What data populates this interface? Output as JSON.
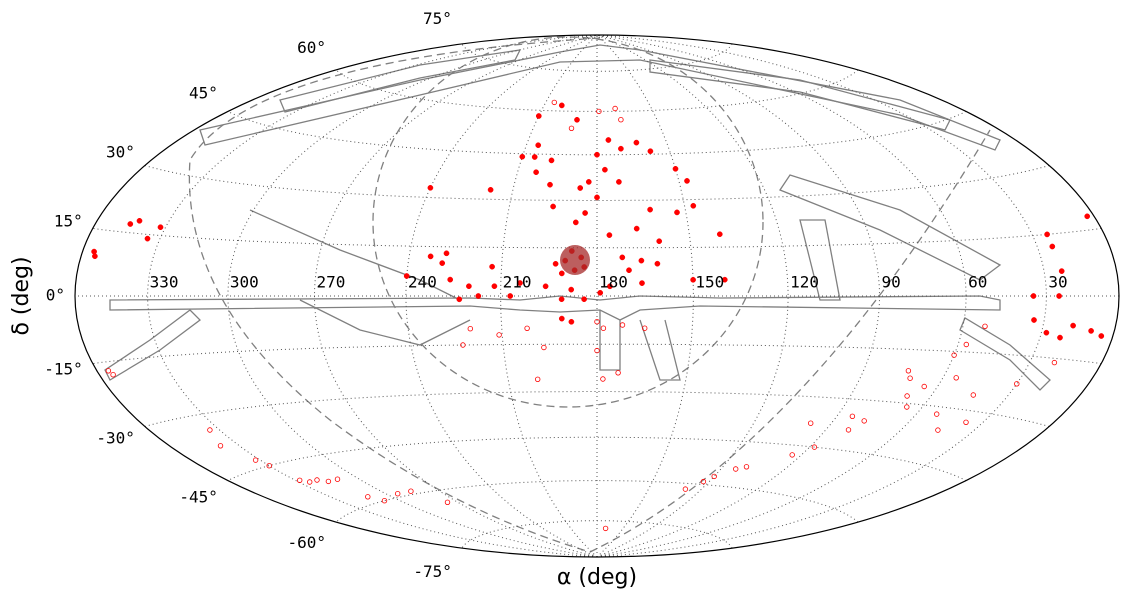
{
  "chart_data": {
    "type": "sky-scatter",
    "projection": "hammer",
    "x_label": "α (deg)",
    "y_label": "δ (deg)",
    "xlim": [
      0,
      360
    ],
    "ylim": [
      -90,
      90
    ],
    "xticks": [
      30,
      60,
      90,
      120,
      150,
      180,
      210,
      240,
      270,
      300,
      330
    ],
    "yticks": [
      {
        "value": -75,
        "label": "-75°"
      },
      {
        "value": -60,
        "label": "-60°"
      },
      {
        "value": -45,
        "label": "-45°"
      },
      {
        "value": -30,
        "label": "-30°"
      },
      {
        "value": -15,
        "label": "-15°"
      },
      {
        "value": 0,
        "label": "0°"
      },
      {
        "value": 15,
        "label": "15°"
      },
      {
        "value": 30,
        "label": "30°"
      },
      {
        "value": 45,
        "label": "45°"
      },
      {
        "value": 60,
        "label": "60°"
      },
      {
        "value": 75,
        "label": "75°"
      }
    ],
    "grid": true,
    "series": [
      {
        "color": "#ff0000",
        "marker": "filled",
        "x": [
          355,
          354,
          345,
          342,
          335,
          332,
          3,
          24,
          24,
          23,
          25,
          35,
          34,
          28,
          18,
          10,
          5,
          22,
          200,
          210,
          205,
          190,
          180,
          175,
          177,
          172,
          183,
          180,
          186,
          197,
          198,
          210,
          205,
          203,
          195,
          187,
          184,
          176,
          167,
          160,
          162,
          153,
          147,
          150,
          158,
          163,
          170,
          147,
          140,
          172,
          170,
          166,
          161,
          150,
          140,
          166,
          176,
          179,
          191,
          191,
          193,
          188,
          184,
          196,
          204,
          212,
          217,
          220,
          223,
          207,
          213,
          228,
          233,
          229,
          240,
          226,
          218,
          240,
          188,
          191,
          188,
          185,
          187,
          190,
          184
        ],
        "y": [
          10,
          9,
          17,
          18,
          14,
          17,
          18,
          15,
          12,
          6,
          0,
          0,
          -6,
          -9,
          -7,
          -8,
          -9,
          -10,
          62,
          58,
          48,
          57,
          45,
          50,
          40,
          36,
          36,
          31,
          34,
          35,
          43,
          44,
          44,
          39,
          28,
          23,
          26,
          19,
          21,
          17,
          27,
          26,
          28,
          40,
          46,
          49,
          47,
          36,
          19,
          12,
          8,
          11,
          10,
          5,
          5,
          4,
          3,
          1,
          7,
          -1,
          10,
          2,
          -1,
          3,
          4,
          3,
          0,
          3,
          -1,
          0,
          9,
          13,
          12,
          10,
          6,
          5,
          33,
          33,
          -8,
          -7,
          14,
          12,
          8,
          11,
          9
        ]
      },
      {
        "color": "#ff0000",
        "marker": "open",
        "x": [
          179,
          170,
          168,
          192,
          205,
          180,
          178,
          172,
          165,
          180,
          178,
          173,
          197,
          200,
          202,
          211,
          220,
          223,
          170,
          355,
          354,
          338,
          334,
          332,
          330,
          328,
          325,
          320,
          316,
          310,
          312,
          308,
          294,
          285,
          276,
          129,
          123,
          120,
          113,
          109,
          98,
          94,
          88,
          84,
          81,
          78,
          74,
          72,
          69,
          65,
          66,
          60,
          57,
          55,
          52,
          45,
          37,
          30,
          20,
          44,
          52
        ],
        "y": [
          60,
          61,
          57,
          54,
          63,
          -8,
          -10,
          -9,
          -10,
          -17,
          -26,
          -24,
          -16,
          -26,
          -10,
          -12,
          -10,
          -15,
          -78,
          -17,
          -18,
          -38,
          -34,
          -43,
          -45,
          -50,
          -51,
          -51,
          -52,
          -52,
          -58,
          -60,
          -59,
          -59,
          -64,
          -62,
          -59,
          -57,
          -54,
          -53,
          -38,
          -48,
          -45,
          -35,
          -39,
          -36,
          -21,
          -23,
          -28,
          -25,
          -31,
          -16,
          -13,
          -22,
          -32,
          -36,
          -33,
          -22,
          -16,
          -26,
          -8
        ]
      }
    ]
  }
}
